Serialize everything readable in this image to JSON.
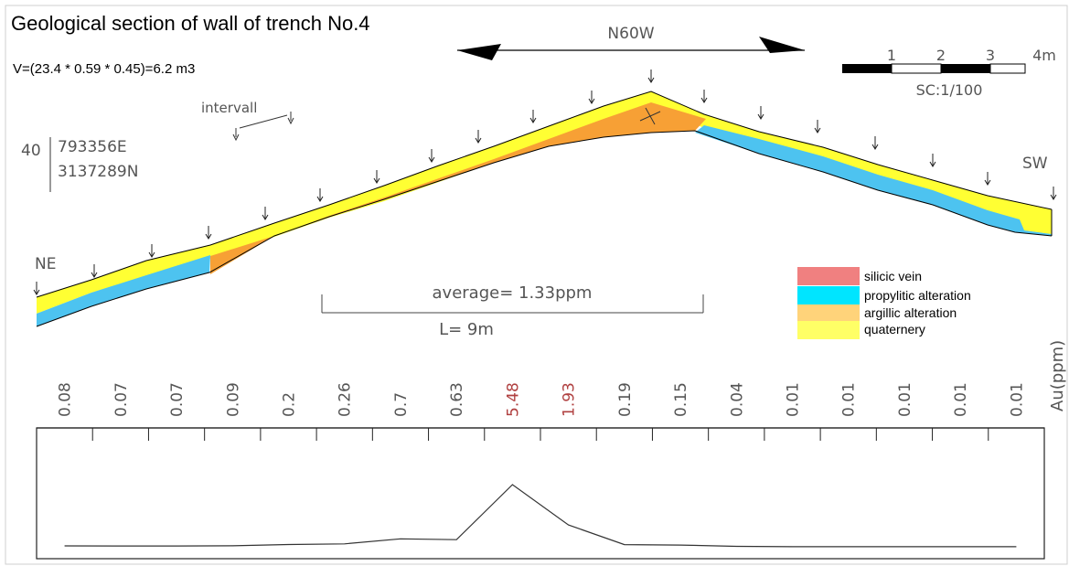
{
  "title": "Geological section of wall of trench No.4",
  "volume": "V=(23.4 * 0.59 * 0.45)=6.2 m3",
  "direction": "N60W",
  "scale_bar": {
    "ticks": [
      "1",
      "2",
      "3",
      "4m"
    ],
    "label": "SC:1/100"
  },
  "interval_label": "intervall",
  "coords": {
    "number": "40",
    "east": "793356E",
    "north": "3137289N"
  },
  "end_labels": {
    "left": "NE",
    "right": "SW"
  },
  "average": "average= 1.33ppm",
  "length": "L= 9m",
  "legend": [
    {
      "label": "silicic vein",
      "color": "#F08080"
    },
    {
      "label": "propylitic alteration",
      "color": "#00E5FF"
    },
    {
      "label": "argillic alteration",
      "color": "#FFD37A"
    },
    {
      "label": "quaternery",
      "color": "#FFFF66"
    }
  ],
  "colors": {
    "orange": "#F7A035",
    "yellow": "#FFFF33",
    "cyan": "#4DC3F0",
    "highlight": "#B04040"
  },
  "chart_data": {
    "type": "line",
    "ylabel": "Au(ppm)",
    "categories": [
      "0.08",
      "0.07",
      "0.07",
      "0.09",
      "0.2",
      "0.26",
      "0.7",
      "0.63",
      "5.48",
      "1.93",
      "0.19",
      "0.15",
      "0.04",
      "0.01",
      "0.01",
      "0.01",
      "0.01",
      "0.01"
    ],
    "values": [
      0.08,
      0.07,
      0.07,
      0.09,
      0.2,
      0.26,
      0.7,
      0.63,
      5.48,
      1.93,
      0.19,
      0.15,
      0.04,
      0.01,
      0.01,
      0.01,
      0.01,
      0.01
    ],
    "highlighted": [
      8,
      9
    ]
  }
}
